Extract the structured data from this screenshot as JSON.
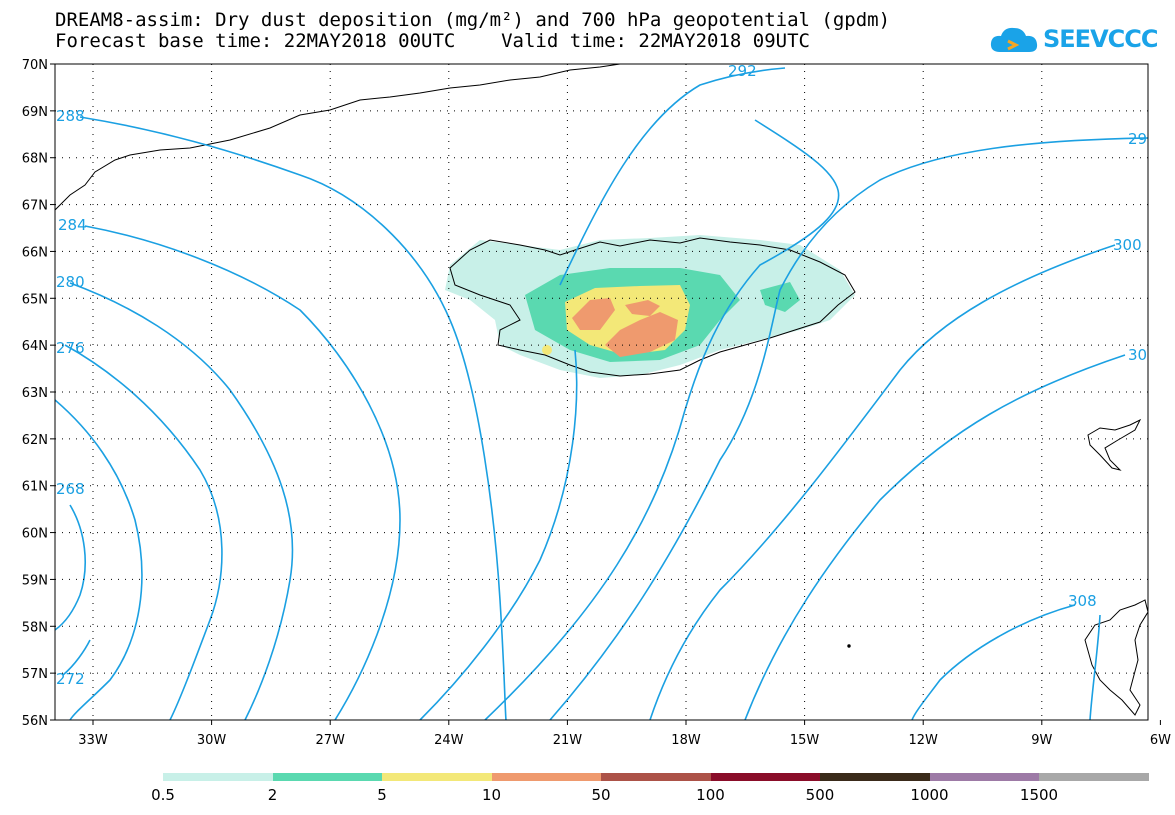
{
  "title_line1": "DREAM8-assim: Dry dust deposition (mg/m²) and 700 hPa geopotential (gpdm)",
  "title_line2": "Forecast base time: 22MAY2018 00UTC    Valid time: 22MAY2018 09UTC",
  "logo_text": "SEEVCCC",
  "lat_labels": [
    "70N",
    "69N",
    "68N",
    "67N",
    "66N",
    "65N",
    "64N",
    "63N",
    "62N",
    "61N",
    "60N",
    "59N",
    "58N",
    "57N",
    "56N"
  ],
  "lon_labels": [
    "33W",
    "30W",
    "27W",
    "24W",
    "21W",
    "18W",
    "15W",
    "12W",
    "9W",
    "6W"
  ],
  "contour_labels": [
    "292",
    "288",
    "284",
    "280",
    "276",
    "268",
    "272",
    "29",
    "300",
    "30",
    "308"
  ],
  "legend": {
    "labels": [
      "0.5",
      "2",
      "5",
      "10",
      "50",
      "100",
      "500",
      "1000",
      "1500"
    ],
    "colors": [
      "#c8f0e8",
      "#5ad9b0",
      "#f3e878",
      "#ef9a6e",
      "#ac5248",
      "#8a0d29",
      "#3a2a1a",
      "#9d7aa6",
      "#a8a8a8"
    ]
  },
  "colors": {
    "contour": "#1ba0e2",
    "coast": "#000000"
  }
}
